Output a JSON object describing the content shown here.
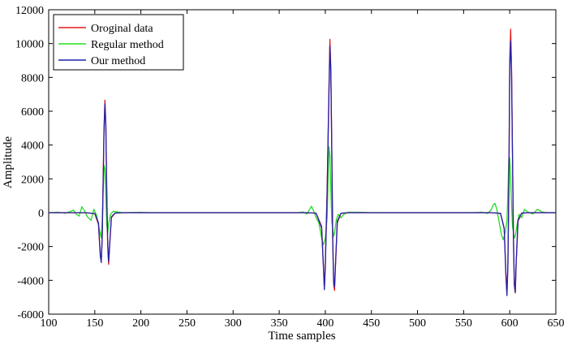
{
  "chart_data": {
    "type": "line",
    "title": "",
    "xlabel": "Time samples",
    "ylabel": "Amplitude",
    "xlim": [
      100,
      650
    ],
    "ylim": [
      -6000,
      12000
    ],
    "xticks": [
      100,
      150,
      200,
      250,
      300,
      350,
      400,
      450,
      500,
      550,
      600,
      650
    ],
    "yticks": [
      -6000,
      -4000,
      -2000,
      0,
      2000,
      4000,
      6000,
      8000,
      10000,
      12000
    ],
    "grid": false,
    "legend_position": "top-left",
    "series": [
      {
        "name": "Oroginal data",
        "color": "#e41a1c",
        "points": [
          [
            100,
            0
          ],
          [
            140,
            0
          ],
          [
            150,
            -60
          ],
          [
            154,
            -700
          ],
          [
            156,
            -2600
          ],
          [
            157,
            -2900
          ],
          [
            158,
            -1500
          ],
          [
            159,
            1800
          ],
          [
            160,
            5000
          ],
          [
            161,
            6650
          ],
          [
            162,
            5200
          ],
          [
            163,
            1000
          ],
          [
            164,
            -2000
          ],
          [
            165,
            -3050
          ],
          [
            166,
            -2100
          ],
          [
            168,
            -300
          ],
          [
            172,
            -30
          ],
          [
            180,
            0
          ],
          [
            380,
            0
          ],
          [
            390,
            -30
          ],
          [
            396,
            -800
          ],
          [
            398,
            -3200
          ],
          [
            399,
            -4500
          ],
          [
            400,
            -3000
          ],
          [
            402,
            1500
          ],
          [
            404,
            7500
          ],
          [
            405,
            10250
          ],
          [
            406,
            8500
          ],
          [
            407,
            4000
          ],
          [
            408,
            -1500
          ],
          [
            409,
            -4200
          ],
          [
            410,
            -4600
          ],
          [
            411,
            -3200
          ],
          [
            413,
            -600
          ],
          [
            417,
            -40
          ],
          [
            425,
            0
          ],
          [
            580,
            0
          ],
          [
            590,
            -40
          ],
          [
            594,
            -900
          ],
          [
            596,
            -3800
          ],
          [
            597,
            -4800
          ],
          [
            598,
            -3000
          ],
          [
            599,
            1500
          ],
          [
            600,
            9000
          ],
          [
            601,
            10850
          ],
          [
            602,
            8500
          ],
          [
            603,
            3500
          ],
          [
            604,
            -1500
          ],
          [
            605,
            -4300
          ],
          [
            606,
            -4750
          ],
          [
            607,
            -3000
          ],
          [
            609,
            -500
          ],
          [
            613,
            -30
          ],
          [
            620,
            0
          ],
          [
            650,
            0
          ]
        ]
      },
      {
        "name": "Regular method",
        "color": "#22dd22",
        "points": [
          [
            100,
            0
          ],
          [
            110,
            30
          ],
          [
            118,
            -30
          ],
          [
            124,
            80
          ],
          [
            127,
            150
          ],
          [
            130,
            -100
          ],
          [
            133,
            -200
          ],
          [
            136,
            350
          ],
          [
            139,
            100
          ],
          [
            142,
            -250
          ],
          [
            146,
            -450
          ],
          [
            149,
            200
          ],
          [
            152,
            -150
          ],
          [
            155,
            -1000
          ],
          [
            157,
            -1500
          ],
          [
            158,
            -600
          ],
          [
            159,
            1200
          ],
          [
            160,
            2800
          ],
          [
            161,
            2600
          ],
          [
            162,
            900
          ],
          [
            163,
            -700
          ],
          [
            164,
            -1200
          ],
          [
            165,
            -700
          ],
          [
            167,
            -100
          ],
          [
            170,
            80
          ],
          [
            175,
            40
          ],
          [
            180,
            0
          ],
          [
            200,
            20
          ],
          [
            210,
            0
          ],
          [
            370,
            0
          ],
          [
            376,
            40
          ],
          [
            380,
            -80
          ],
          [
            383,
            200
          ],
          [
            385,
            380
          ],
          [
            387,
            150
          ],
          [
            390,
            -300
          ],
          [
            393,
            -600
          ],
          [
            396,
            -1500
          ],
          [
            398,
            -1900
          ],
          [
            400,
            -1500
          ],
          [
            402,
            -300
          ],
          [
            403,
            2000
          ],
          [
            404,
            3900
          ],
          [
            405,
            3400
          ],
          [
            406,
            1500
          ],
          [
            407,
            -500
          ],
          [
            409,
            -1400
          ],
          [
            410,
            -1200
          ],
          [
            412,
            -400
          ],
          [
            414,
            -100
          ],
          [
            417,
            -300
          ],
          [
            420,
            -100
          ],
          [
            425,
            30
          ],
          [
            440,
            20
          ],
          [
            450,
            0
          ],
          [
            560,
            0
          ],
          [
            570,
            30
          ],
          [
            576,
            -50
          ],
          [
            580,
            180
          ],
          [
            582,
            450
          ],
          [
            584,
            550
          ],
          [
            586,
            200
          ],
          [
            588,
            -400
          ],
          [
            591,
            -1300
          ],
          [
            593,
            -1600
          ],
          [
            595,
            -1200
          ],
          [
            597,
            -500
          ],
          [
            598,
            1200
          ],
          [
            599,
            3200
          ],
          [
            600,
            3250
          ],
          [
            601,
            2000
          ],
          [
            602,
            400
          ],
          [
            603,
            -800
          ],
          [
            605,
            -1500
          ],
          [
            606,
            -1400
          ],
          [
            608,
            -700
          ],
          [
            610,
            -100
          ],
          [
            613,
            -300
          ],
          [
            616,
            200
          ],
          [
            620,
            30
          ],
          [
            625,
            -80
          ],
          [
            630,
            200
          ],
          [
            635,
            50
          ],
          [
            640,
            0
          ],
          [
            650,
            0
          ]
        ]
      },
      {
        "name": "Our method",
        "color": "#2222aa",
        "points": [
          [
            100,
            0
          ],
          [
            140,
            0
          ],
          [
            150,
            -50
          ],
          [
            154,
            -600
          ],
          [
            156,
            -2500
          ],
          [
            157,
            -2950
          ],
          [
            158,
            -1600
          ],
          [
            159,
            1500
          ],
          [
            160,
            4800
          ],
          [
            161,
            6450
          ],
          [
            162,
            5100
          ],
          [
            163,
            1200
          ],
          [
            164,
            -1800
          ],
          [
            165,
            -2900
          ],
          [
            166,
            -2000
          ],
          [
            168,
            -250
          ],
          [
            172,
            -20
          ],
          [
            180,
            0
          ],
          [
            380,
            0
          ],
          [
            390,
            -30
          ],
          [
            396,
            -900
          ],
          [
            398,
            -3300
          ],
          [
            399,
            -4550
          ],
          [
            400,
            -3200
          ],
          [
            402,
            1200
          ],
          [
            404,
            7200
          ],
          [
            405,
            9850
          ],
          [
            406,
            8300
          ],
          [
            407,
            3800
          ],
          [
            408,
            -1400
          ],
          [
            409,
            -4000
          ],
          [
            410,
            -4400
          ],
          [
            411,
            -3100
          ],
          [
            413,
            -500
          ],
          [
            417,
            -30
          ],
          [
            425,
            0
          ],
          [
            580,
            0
          ],
          [
            590,
            -40
          ],
          [
            594,
            -950
          ],
          [
            596,
            -3900
          ],
          [
            597,
            -4900
          ],
          [
            598,
            -3200
          ],
          [
            599,
            1200
          ],
          [
            600,
            8500
          ],
          [
            601,
            10150
          ],
          [
            602,
            8200
          ],
          [
            603,
            3300
          ],
          [
            604,
            -1400
          ],
          [
            605,
            -4200
          ],
          [
            606,
            -4700
          ],
          [
            607,
            -2900
          ],
          [
            609,
            -450
          ],
          [
            613,
            -20
          ],
          [
            620,
            0
          ],
          [
            650,
            0
          ]
        ]
      }
    ]
  }
}
